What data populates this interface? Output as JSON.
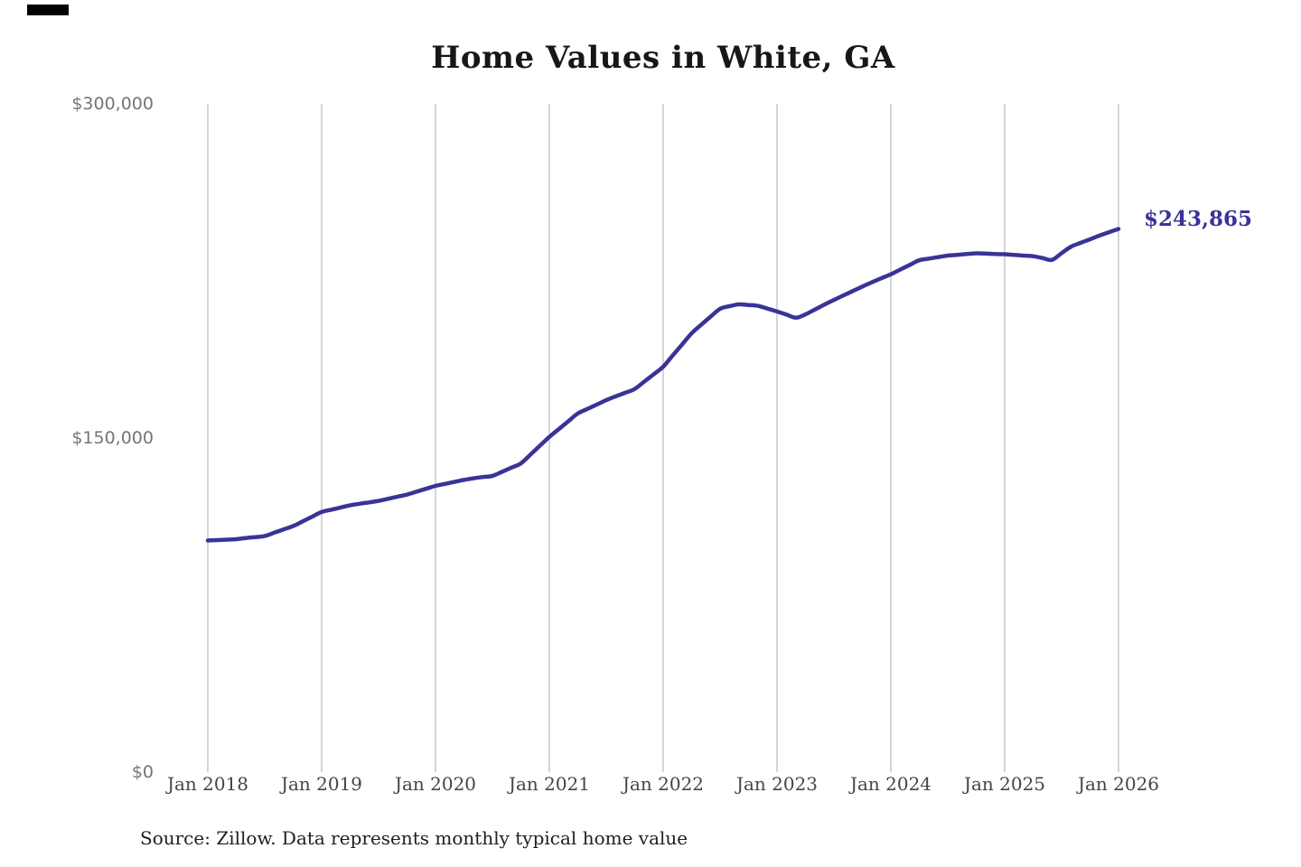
{
  "chart_data": {
    "type": "line",
    "title": "Home Values in White, GA",
    "series_name": "Monthly typical home value",
    "x_start": "Jan 2018",
    "x_end": "Jan 2026",
    "x_interval": "monthly",
    "x_tick_labels": [
      "Jan 2018",
      "Jan 2019",
      "Jan 2020",
      "Jan 2021",
      "Jan 2022",
      "Jan 2023",
      "Jan 2024",
      "Jan 2025",
      "Jan 2026"
    ],
    "months_per_tick": 12,
    "y_ticks": [
      {
        "label": "$0",
        "value": 0
      },
      {
        "label": "$150,000",
        "value": 150000
      },
      {
        "label": "$300,000",
        "value": 300000
      }
    ],
    "y_range": [
      0,
      300000
    ],
    "grid": "vertical-only",
    "legend": "none",
    "line_color": "#3a3397",
    "grid_color": "#c9c9c9",
    "values": [
      104000,
      104200,
      104400,
      104600,
      105100,
      105500,
      106000,
      107500,
      109000,
      110500,
      112600,
      114700,
      116800,
      117800,
      118800,
      119800,
      120500,
      121100,
      121800,
      122700,
      123700,
      124600,
      125900,
      127200,
      128500,
      129400,
      130300,
      131200,
      131900,
      132500,
      133000,
      134800,
      136700,
      138600,
      142500,
      146500,
      150500,
      154000,
      157500,
      161000,
      163000,
      165000,
      167000,
      168700,
      170300,
      172000,
      175300,
      178600,
      182000,
      187000,
      192000,
      197000,
      200800,
      204500,
      208000,
      209200,
      210000,
      209700,
      209300,
      208100,
      206800,
      205400,
      204000,
      205500,
      207700,
      209900,
      212000,
      214000,
      216000,
      218000,
      219900,
      221700,
      223500,
      225600,
      227700,
      229800,
      230500,
      231200,
      231900,
      232200,
      232600,
      232900,
      232800,
      232600,
      232500,
      232200,
      231900,
      231600,
      230800,
      230000,
      233000,
      235900,
      237600,
      239200,
      240900,
      242400,
      243865
    ],
    "final_value": 243865,
    "annotation": "$243,865",
    "source": "Source: Zillow. Data represents monthly typical home value"
  }
}
